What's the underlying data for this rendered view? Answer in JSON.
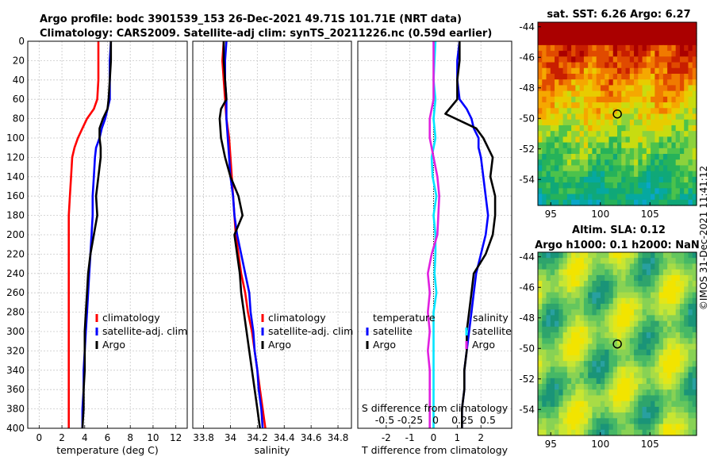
{
  "header": {
    "line1": "Argo profile: bodc 3901539_153 26-Dec-2021 49.71S 101.71E (NRT data)",
    "line2": "Climatology: CARS2009. Satellite-adj clim: synTS_20211226.nc (0.59d earlier)"
  },
  "stamp": "©IMOS 31-Dec-2021 11:41:12",
  "colors": {
    "climatology": "#ff0000",
    "satellite": "#0000ff",
    "argo": "#000000",
    "sat_s": "#00e5ff",
    "argo_s": "#e020e0"
  },
  "chart_data": [
    {
      "type": "line",
      "id": "temperature",
      "xlabel": "temperature (deg C)",
      "xlim": [
        -1,
        13
      ],
      "xticks": [
        0,
        2,
        4,
        6,
        8,
        10,
        12
      ],
      "ylim": [
        0,
        400
      ],
      "yticks": [
        0,
        20,
        40,
        60,
        80,
        100,
        120,
        140,
        160,
        180,
        200,
        220,
        240,
        260,
        280,
        300,
        320,
        340,
        360,
        380,
        400
      ],
      "legend": [
        "climatology",
        "satellite-adj. clim",
        "Argo"
      ],
      "series": [
        {
          "name": "climatology",
          "color": "#ff0000",
          "points": [
            [
              5.2,
              0
            ],
            [
              5.2,
              20
            ],
            [
              5.2,
              40
            ],
            [
              5.1,
              60
            ],
            [
              4.8,
              70
            ],
            [
              4.2,
              80
            ],
            [
              3.8,
              90
            ],
            [
              3.4,
              100
            ],
            [
              3.1,
              110
            ],
            [
              2.9,
              120
            ],
            [
              2.8,
              140
            ],
            [
              2.7,
              160
            ],
            [
              2.6,
              180
            ],
            [
              2.6,
              200
            ],
            [
              2.6,
              220
            ],
            [
              2.6,
              240
            ],
            [
              2.6,
              260
            ],
            [
              2.6,
              280
            ],
            [
              2.6,
              300
            ],
            [
              2.6,
              320
            ],
            [
              2.6,
              340
            ],
            [
              2.6,
              360
            ],
            [
              2.6,
              380
            ],
            [
              2.6,
              400
            ]
          ]
        },
        {
          "name": "satellite-adj. clim",
          "color": "#0000ff",
          "points": [
            [
              6.3,
              0
            ],
            [
              6.2,
              20
            ],
            [
              6.2,
              40
            ],
            [
              6.2,
              60
            ],
            [
              6.0,
              70
            ],
            [
              5.8,
              80
            ],
            [
              5.5,
              90
            ],
            [
              5.3,
              100
            ],
            [
              5.0,
              110
            ],
            [
              4.9,
              120
            ],
            [
              4.8,
              140
            ],
            [
              4.7,
              160
            ],
            [
              4.7,
              180
            ],
            [
              4.6,
              200
            ],
            [
              4.5,
              220
            ],
            [
              4.4,
              240
            ],
            [
              4.3,
              260
            ],
            [
              4.2,
              280
            ],
            [
              4.1,
              300
            ],
            [
              4.0,
              320
            ],
            [
              3.9,
              340
            ],
            [
              3.9,
              360
            ],
            [
              3.8,
              380
            ],
            [
              3.8,
              400
            ]
          ]
        },
        {
          "name": "Argo",
          "color": "#000000",
          "points": [
            [
              6.3,
              0
            ],
            [
              6.3,
              20
            ],
            [
              6.2,
              40
            ],
            [
              6.1,
              60
            ],
            [
              6.0,
              70
            ],
            [
              5.6,
              80
            ],
            [
              5.3,
              90
            ],
            [
              5.3,
              100
            ],
            [
              5.4,
              110
            ],
            [
              5.4,
              120
            ],
            [
              5.2,
              140
            ],
            [
              5.0,
              160
            ],
            [
              5.1,
              180
            ],
            [
              4.8,
              200
            ],
            [
              4.5,
              220
            ],
            [
              4.3,
              240
            ],
            [
              4.2,
              260
            ],
            [
              4.1,
              280
            ],
            [
              4.0,
              300
            ],
            [
              4.0,
              320
            ],
            [
              4.0,
              340
            ],
            [
              3.9,
              360
            ],
            [
              3.9,
              380
            ],
            [
              3.8,
              400
            ]
          ]
        }
      ]
    },
    {
      "type": "line",
      "id": "salinity",
      "xlabel": "salinity",
      "xlim": [
        33.72,
        34.9
      ],
      "xticks": [
        33.8,
        34,
        34.2,
        34.4,
        34.6,
        34.8
      ],
      "ylim": [
        0,
        400
      ],
      "legend": [
        "climatology",
        "satellite-adj. clim",
        "Argo"
      ],
      "series": [
        {
          "name": "climatology",
          "color": "#ff0000",
          "points": [
            [
              33.95,
              0
            ],
            [
              33.94,
              20
            ],
            [
              33.95,
              40
            ],
            [
              33.96,
              60
            ],
            [
              33.97,
              80
            ],
            [
              33.99,
              100
            ],
            [
              34.0,
              120
            ],
            [
              34.01,
              140
            ],
            [
              34.02,
              160
            ],
            [
              34.03,
              180
            ],
            [
              34.04,
              200
            ],
            [
              34.06,
              220
            ],
            [
              34.08,
              240
            ],
            [
              34.11,
              260
            ],
            [
              34.13,
              280
            ],
            [
              34.16,
              300
            ],
            [
              34.18,
              320
            ],
            [
              34.2,
              340
            ],
            [
              34.22,
              360
            ],
            [
              34.24,
              380
            ],
            [
              34.26,
              400
            ]
          ]
        },
        {
          "name": "satellite-adj. clim",
          "color": "#0000ff",
          "points": [
            [
              33.97,
              0
            ],
            [
              33.96,
              20
            ],
            [
              33.96,
              40
            ],
            [
              33.97,
              60
            ],
            [
              33.97,
              80
            ],
            [
              33.98,
              100
            ],
            [
              33.99,
              120
            ],
            [
              34.0,
              140
            ],
            [
              34.02,
              160
            ],
            [
              34.03,
              180
            ],
            [
              34.05,
              200
            ],
            [
              34.08,
              220
            ],
            [
              34.11,
              240
            ],
            [
              34.14,
              260
            ],
            [
              34.15,
              280
            ],
            [
              34.17,
              300
            ],
            [
              34.18,
              320
            ],
            [
              34.2,
              340
            ],
            [
              34.21,
              360
            ],
            [
              34.23,
              380
            ],
            [
              34.24,
              400
            ]
          ]
        },
        {
          "name": "Argo",
          "color": "#000000",
          "points": [
            [
              33.95,
              0
            ],
            [
              33.95,
              20
            ],
            [
              33.96,
              40
            ],
            [
              33.97,
              60
            ],
            [
              33.93,
              70
            ],
            [
              33.92,
              80
            ],
            [
              33.93,
              100
            ],
            [
              33.96,
              120
            ],
            [
              34.0,
              140
            ],
            [
              34.06,
              160
            ],
            [
              34.09,
              180
            ],
            [
              34.03,
              200
            ],
            [
              34.05,
              220
            ],
            [
              34.07,
              240
            ],
            [
              34.08,
              260
            ],
            [
              34.1,
              280
            ],
            [
              34.12,
              300
            ],
            [
              34.14,
              320
            ],
            [
              34.16,
              340
            ],
            [
              34.18,
              360
            ],
            [
              34.2,
              380
            ],
            [
              34.22,
              400
            ]
          ]
        }
      ]
    },
    {
      "type": "line",
      "id": "difference",
      "xlabel": "T difference from climatology",
      "xlabel_top": "S difference from climatology",
      "xlim": [
        -3.2,
        3.3
      ],
      "xticks": [
        -2,
        -1,
        0,
        1,
        2
      ],
      "xticks_top": [
        "-0.5",
        "-0.25",
        "0",
        "0.25",
        "0.5"
      ],
      "ylim": [
        0,
        400
      ],
      "legend_t_title": "temperature",
      "legend_s_title": "salinity",
      "legend_t": [
        "satellite",
        "Argo"
      ],
      "legend_s": [
        "satellite",
        "Argo"
      ],
      "series": [
        {
          "name": "T satellite",
          "color": "#0000ff",
          "points": [
            [
              1.1,
              0
            ],
            [
              1.0,
              20
            ],
            [
              1.0,
              40
            ],
            [
              1.1,
              60
            ],
            [
              1.4,
              70
            ],
            [
              1.6,
              80
            ],
            [
              1.7,
              90
            ],
            [
              1.9,
              100
            ],
            [
              1.9,
              110
            ],
            [
              2.0,
              120
            ],
            [
              2.1,
              140
            ],
            [
              2.2,
              160
            ],
            [
              2.3,
              180
            ],
            [
              2.2,
              200
            ],
            [
              2.0,
              220
            ],
            [
              1.8,
              240
            ],
            [
              1.7,
              260
            ],
            [
              1.6,
              280
            ],
            [
              1.5,
              300
            ],
            [
              1.4,
              320
            ],
            [
              1.3,
              340
            ],
            [
              1.3,
              360
            ],
            [
              1.2,
              380
            ],
            [
              1.2,
              400
            ]
          ]
        },
        {
          "name": "T Argo",
          "color": "#000000",
          "points": [
            [
              1.1,
              0
            ],
            [
              1.1,
              20
            ],
            [
              1.0,
              40
            ],
            [
              1.0,
              60
            ],
            [
              0.5,
              75
            ],
            [
              1.8,
              90
            ],
            [
              2.1,
              100
            ],
            [
              2.5,
              120
            ],
            [
              2.4,
              140
            ],
            [
              2.6,
              160
            ],
            [
              2.6,
              180
            ],
            [
              2.5,
              200
            ],
            [
              2.2,
              220
            ],
            [
              1.7,
              240
            ],
            [
              1.6,
              260
            ],
            [
              1.5,
              280
            ],
            [
              1.4,
              300
            ],
            [
              1.4,
              320
            ],
            [
              1.3,
              340
            ],
            [
              1.3,
              360
            ],
            [
              1.2,
              380
            ],
            [
              1.2,
              400
            ]
          ]
        },
        {
          "name": "S satellite",
          "color": "#00e5ff",
          "points": [
            [
              0.02,
              0
            ],
            [
              0.01,
              20
            ],
            [
              0.0,
              40
            ],
            [
              0.02,
              60
            ],
            [
              0.0,
              80
            ],
            [
              0.02,
              100
            ],
            [
              -0.02,
              120
            ],
            [
              -0.01,
              140
            ],
            [
              0.03,
              160
            ],
            [
              0.0,
              180
            ],
            [
              0.02,
              200
            ],
            [
              0.02,
              220
            ],
            [
              0.01,
              240
            ],
            [
              0.03,
              260
            ],
            [
              0.0,
              280
            ],
            [
              0.0,
              300
            ],
            [
              0.0,
              320
            ],
            [
              0.0,
              340
            ],
            [
              0.0,
              360
            ],
            [
              0.0,
              380
            ],
            [
              0.0,
              400
            ]
          ]
        },
        {
          "name": "S Argo",
          "color": "#e020e0",
          "points": [
            [
              0.0,
              0
            ],
            [
              0.0,
              20
            ],
            [
              0.0,
              40
            ],
            [
              0.0,
              60
            ],
            [
              -0.04,
              80
            ],
            [
              -0.04,
              100
            ],
            [
              0.0,
              120
            ],
            [
              0.04,
              140
            ],
            [
              0.06,
              160
            ],
            [
              0.05,
              180
            ],
            [
              0.04,
              200
            ],
            [
              -0.02,
              220
            ],
            [
              -0.06,
              240
            ],
            [
              -0.04,
              260
            ],
            [
              -0.06,
              280
            ],
            [
              -0.04,
              300
            ],
            [
              -0.06,
              320
            ],
            [
              -0.04,
              340
            ],
            [
              -0.04,
              360
            ],
            [
              -0.04,
              380
            ],
            [
              -0.04,
              400
            ]
          ]
        }
      ]
    },
    {
      "type": "heatmap",
      "id": "sst-map",
      "title": "sat. SST: 6.26 Argo: 6.27",
      "xlim": [
        93.7,
        109.7
      ],
      "ylim": [
        -55.7,
        -43.7
      ],
      "xticks": [
        95,
        100,
        105
      ],
      "yticks": [
        -44,
        -46,
        -48,
        -50,
        -52,
        -54
      ],
      "marker": [
        101.71,
        -49.71
      ]
    },
    {
      "type": "heatmap",
      "id": "sla-map",
      "title": "Altim. SLA: 0.12",
      "subtitle": "Argo h1000: 0.1 h2000: NaN",
      "xlim": [
        93.7,
        109.7
      ],
      "ylim": [
        -55.7,
        -43.7
      ],
      "xticks": [
        95,
        100,
        105
      ],
      "yticks": [
        -44,
        -46,
        -48,
        -50,
        -52,
        -54
      ],
      "marker": [
        101.71,
        -49.71
      ]
    }
  ]
}
